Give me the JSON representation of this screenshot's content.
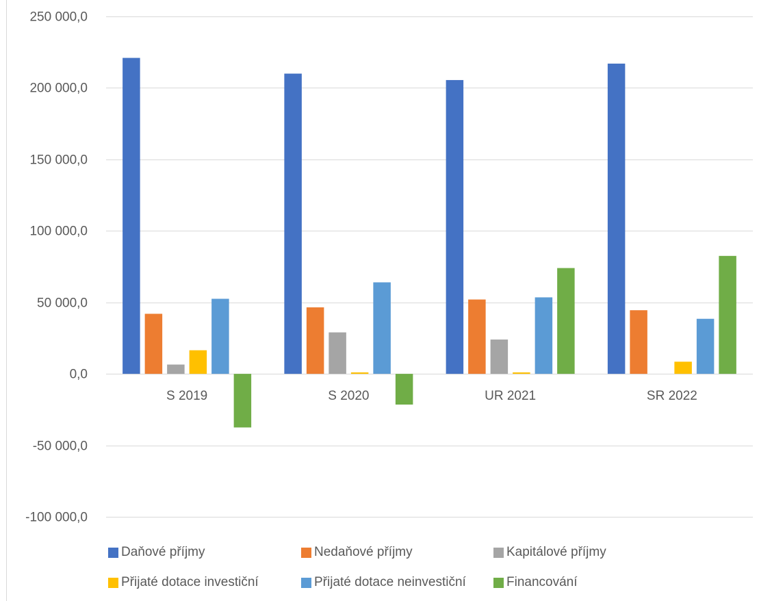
{
  "chart_data": {
    "type": "bar",
    "categories": [
      "S 2019",
      "S 2020",
      "UR 2021",
      "SR 2022"
    ],
    "series": [
      {
        "name": "Daňové příjmy",
        "color": "#4472C4",
        "values": [
          221000,
          210000,
          205500,
          217000
        ]
      },
      {
        "name": "Nedaňové příjmy",
        "color": "#ED7D31",
        "values": [
          42000,
          46500,
          52000,
          44500
        ]
      },
      {
        "name": "Kapitálové příjmy",
        "color": "#A5A5A5",
        "values": [
          6500,
          29000,
          24000,
          0
        ]
      },
      {
        "name": "Přijaté dotace investiční",
        "color": "#FFC000",
        "values": [
          16500,
          1000,
          1000,
          8500
        ]
      },
      {
        "name": "Přijaté dotace neinvestiční",
        "color": "#5B9BD5",
        "values": [
          52500,
          64000,
          53500,
          38500
        ]
      },
      {
        "name": "Financování",
        "color": "#70AD47",
        "values": [
          -37500,
          -21500,
          74000,
          82500
        ]
      }
    ],
    "yticks": [
      "250 000,0",
      "200 000,0",
      "150 000,0",
      "100 000,0",
      "50 000,0",
      "0,0",
      "-50 000,0",
      "-100 000,0"
    ],
    "ylim": [
      -100000,
      250000
    ],
    "grid": true,
    "legend_position": "bottom"
  }
}
